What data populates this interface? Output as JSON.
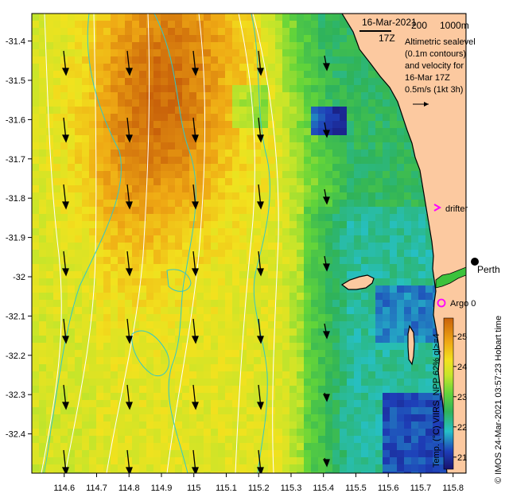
{
  "map": {
    "date": "16-Mar-2021",
    "time": "17Z",
    "scale_left": "200",
    "scale_right": "1000m",
    "legend_line1": "Altimetric sealevel",
    "legend_line2": "(0.1m contours)",
    "legend_line3": "and velocity for",
    "legend_line4": "16-Mar 17Z",
    "legend_line5": "0.5m/s (1kt 3h)",
    "drifter_label": "drifter",
    "argo_label": "Argo 0",
    "city_label": "Perth",
    "side_text": "© IMOS 24-Mar-2021 03:57:23 Hobart time",
    "colorbar_label": "Temp. (°C) VIIRS_NPP 62% ql>=4"
  },
  "axes": {
    "x_ticks": [
      "114.6",
      "114.7",
      "114.8",
      "114.9",
      "115",
      "115.1",
      "115.2",
      "115.3",
      "115.4",
      "115.5",
      "115.6",
      "115.7",
      "115.8"
    ],
    "y_ticks": [
      "-31.4",
      "-31.5",
      "-31.6",
      "-31.7",
      "-31.8",
      "-31.9",
      "-32",
      "-32.1",
      "-32.2",
      "-32.3",
      "-32.4"
    ],
    "x_range": [
      114.5,
      115.84
    ],
    "y_range": [
      -32.5,
      -31.33
    ]
  },
  "colorbar": {
    "ticks": [
      "21",
      "22",
      "23",
      "24",
      "25"
    ],
    "range": [
      20.6,
      25.6
    ]
  },
  "colors": {
    "land": "#fcc9a0",
    "coast": "#000000",
    "cyan_contour": "#34c7c6",
    "drifter": "#ff00ff",
    "argo": "#ff00ff"
  }
}
